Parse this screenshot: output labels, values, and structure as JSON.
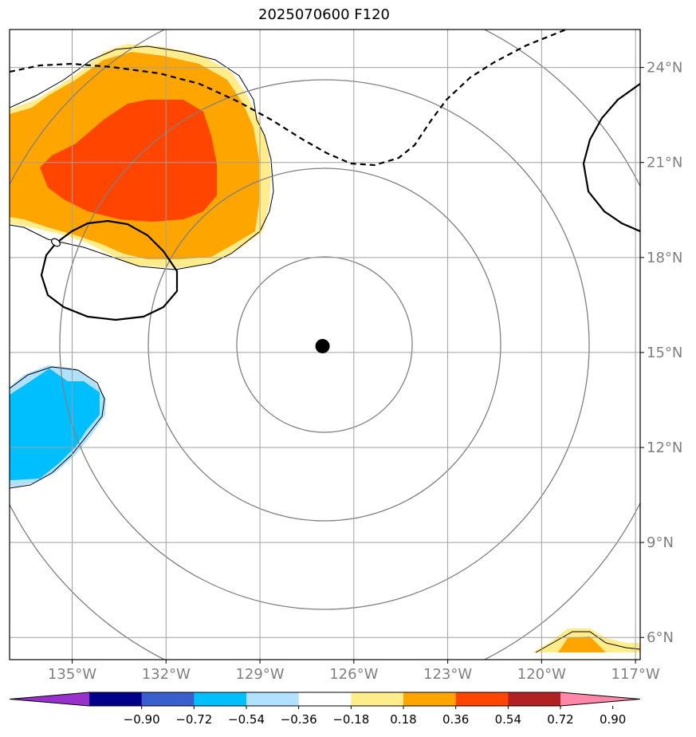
{
  "title": "2025070600 F120",
  "map": {
    "lon_range": [
      -137,
      -116.85
    ],
    "lat_range": [
      5.3,
      25.2
    ],
    "lon_ticks": [
      {
        "value": -135,
        "label": "135°W"
      },
      {
        "value": -132,
        "label": "132°W"
      },
      {
        "value": -129,
        "label": "129°W"
      },
      {
        "value": -126,
        "label": "126°W"
      },
      {
        "value": -123,
        "label": "123°W"
      },
      {
        "value": -120,
        "label": "120°W"
      },
      {
        "value": -117,
        "label": "117°W"
      }
    ],
    "lat_ticks": [
      {
        "value": 6,
        "label": "6°N"
      },
      {
        "value": 9,
        "label": "9°N"
      },
      {
        "value": 12,
        "label": "12°N"
      },
      {
        "value": 15,
        "label": "15°N"
      },
      {
        "value": 18,
        "label": "18°N"
      },
      {
        "value": 21,
        "label": "21°N"
      },
      {
        "value": 24,
        "label": "24°N"
      }
    ],
    "center_marker": {
      "lon": -127.0,
      "lat": 15.2
    },
    "gridline_color": "#a0a0a0",
    "range_ring_color": "#808080"
  },
  "colorbar": {
    "ticks": [
      "−0.90",
      "−0.72",
      "−0.54",
      "−0.36",
      "−0.18",
      "0.18",
      "0.36",
      "0.54",
      "0.72",
      "0.90"
    ],
    "colors": [
      "#9932cc",
      "#00008b",
      "#3a5fcd",
      "#00bfff",
      "#b0e2ff",
      "#ffffff",
      "#ffec8b",
      "#ffa500",
      "#ff4500",
      "#b22222",
      "#ff88aa"
    ]
  }
}
